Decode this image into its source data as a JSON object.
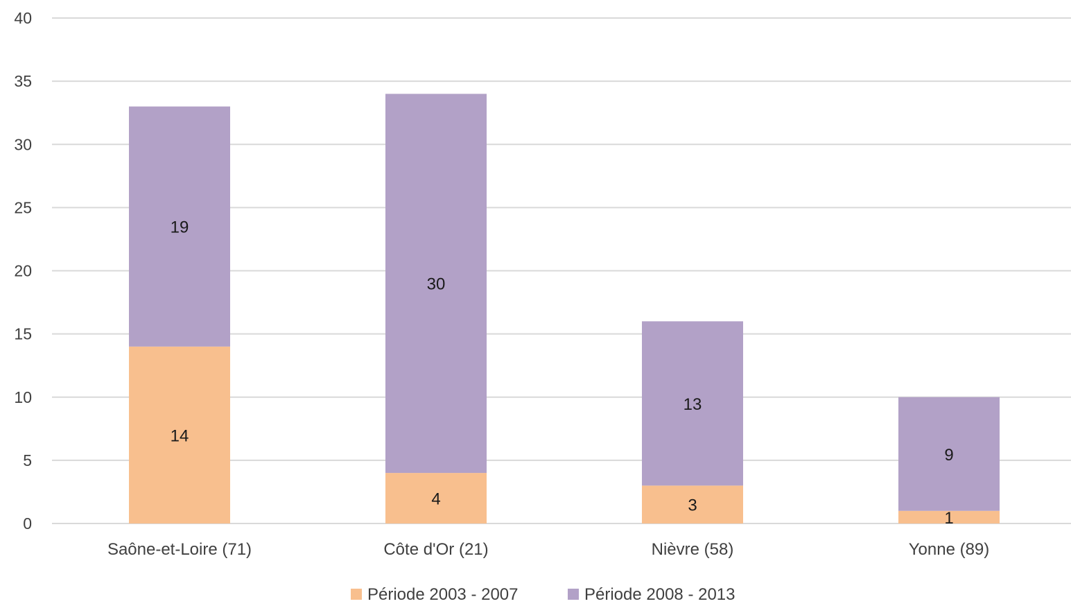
{
  "chart_data": {
    "type": "bar",
    "stacked": true,
    "title": "",
    "xlabel": "",
    "ylabel": "",
    "categories": [
      "Saône-et-Loire (71)",
      "Côte d'Or (21)",
      "Nièvre (58)",
      "Yonne (89)"
    ],
    "series": [
      {
        "name": "Période 2003 - 2007",
        "values": [
          14,
          4,
          3,
          1
        ],
        "color": "#F8BF8E"
      },
      {
        "name": "Période 2008 - 2013",
        "values": [
          19,
          30,
          13,
          9
        ],
        "color": "#B2A1C7"
      }
    ],
    "ylim": [
      0,
      40
    ],
    "yticks": [
      0,
      5,
      10,
      15,
      20,
      25,
      30,
      35,
      40
    ],
    "grid": true,
    "gridColor": "#D9D9D9",
    "data_labels": true,
    "legend_position": "bottom"
  }
}
